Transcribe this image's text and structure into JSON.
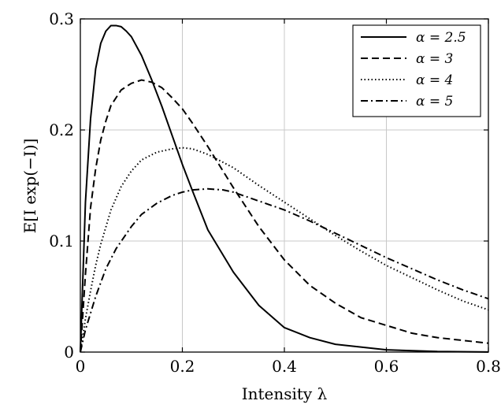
{
  "chart_data": {
    "type": "line",
    "title": "",
    "xlabel": "Intensity λ",
    "ylabel": "E[I exp(−I)]",
    "xlim": [
      0,
      0.8
    ],
    "ylim": [
      0,
      0.3
    ],
    "grid": true,
    "legend_position": "top-right",
    "x_ticks": [
      0,
      0.2,
      0.4,
      0.6,
      0.8
    ],
    "x_tick_labels": [
      "0",
      "0.2",
      "0.4",
      "0.6",
      "0.8"
    ],
    "y_ticks": [
      0,
      0.1,
      0.2,
      0.3
    ],
    "y_tick_labels": [
      "0",
      "0.1",
      "0.2",
      "0.3"
    ],
    "series": [
      {
        "name": "α = 2.5",
        "dash": "solid",
        "points": [
          [
            0,
            0
          ],
          [
            0.01,
            0.135
          ],
          [
            0.02,
            0.21
          ],
          [
            0.03,
            0.255
          ],
          [
            0.04,
            0.278
          ],
          [
            0.05,
            0.289
          ],
          [
            0.06,
            0.294
          ],
          [
            0.07,
            0.294
          ],
          [
            0.08,
            0.293
          ],
          [
            0.09,
            0.289
          ],
          [
            0.1,
            0.284
          ],
          [
            0.12,
            0.267
          ],
          [
            0.14,
            0.245
          ],
          [
            0.16,
            0.221
          ],
          [
            0.18,
            0.195
          ],
          [
            0.2,
            0.169
          ],
          [
            0.22,
            0.145
          ],
          [
            0.25,
            0.11
          ],
          [
            0.3,
            0.072
          ],
          [
            0.35,
            0.042
          ],
          [
            0.4,
            0.022
          ],
          [
            0.45,
            0.013
          ],
          [
            0.5,
            0.007
          ],
          [
            0.6,
            0.002
          ],
          [
            0.7,
            0.0005
          ],
          [
            0.8,
            0.0001
          ]
        ]
      },
      {
        "name": "α = 3",
        "dash": "dashed",
        "points": [
          [
            0,
            0
          ],
          [
            0.01,
            0.07
          ],
          [
            0.02,
            0.13
          ],
          [
            0.03,
            0.165
          ],
          [
            0.04,
            0.191
          ],
          [
            0.05,
            0.208
          ],
          [
            0.06,
            0.222
          ],
          [
            0.08,
            0.236
          ],
          [
            0.1,
            0.242
          ],
          [
            0.12,
            0.245
          ],
          [
            0.14,
            0.243
          ],
          [
            0.16,
            0.238
          ],
          [
            0.18,
            0.229
          ],
          [
            0.2,
            0.219
          ],
          [
            0.22,
            0.206
          ],
          [
            0.25,
            0.185
          ],
          [
            0.3,
            0.148
          ],
          [
            0.35,
            0.113
          ],
          [
            0.4,
            0.083
          ],
          [
            0.45,
            0.06
          ],
          [
            0.5,
            0.044
          ],
          [
            0.55,
            0.031
          ],
          [
            0.6,
            0.024
          ],
          [
            0.65,
            0.017
          ],
          [
            0.7,
            0.013
          ],
          [
            0.8,
            0.008
          ]
        ]
      },
      {
        "name": "α = 4",
        "dash": "dotted",
        "points": [
          [
            0,
            0
          ],
          [
            0.01,
            0.03
          ],
          [
            0.02,
            0.055
          ],
          [
            0.03,
            0.078
          ],
          [
            0.04,
            0.097
          ],
          [
            0.06,
            0.128
          ],
          [
            0.08,
            0.149
          ],
          [
            0.1,
            0.163
          ],
          [
            0.12,
            0.173
          ],
          [
            0.15,
            0.18
          ],
          [
            0.18,
            0.183
          ],
          [
            0.2,
            0.184
          ],
          [
            0.22,
            0.183
          ],
          [
            0.25,
            0.178
          ],
          [
            0.3,
            0.166
          ],
          [
            0.35,
            0.15
          ],
          [
            0.4,
            0.135
          ],
          [
            0.45,
            0.12
          ],
          [
            0.5,
            0.105
          ],
          [
            0.55,
            0.091
          ],
          [
            0.6,
            0.078
          ],
          [
            0.65,
            0.067
          ],
          [
            0.7,
            0.056
          ],
          [
            0.75,
            0.046
          ],
          [
            0.8,
            0.038
          ]
        ]
      },
      {
        "name": "α = 5",
        "dash": "dashdot",
        "points": [
          [
            0,
            0
          ],
          [
            0.01,
            0.02
          ],
          [
            0.02,
            0.035
          ],
          [
            0.03,
            0.05
          ],
          [
            0.05,
            0.075
          ],
          [
            0.07,
            0.093
          ],
          [
            0.1,
            0.113
          ],
          [
            0.12,
            0.124
          ],
          [
            0.15,
            0.134
          ],
          [
            0.18,
            0.141
          ],
          [
            0.2,
            0.144
          ],
          [
            0.22,
            0.146
          ],
          [
            0.25,
            0.147
          ],
          [
            0.28,
            0.146
          ],
          [
            0.3,
            0.144
          ],
          [
            0.35,
            0.136
          ],
          [
            0.4,
            0.128
          ],
          [
            0.45,
            0.118
          ],
          [
            0.5,
            0.107
          ],
          [
            0.55,
            0.096
          ],
          [
            0.6,
            0.085
          ],
          [
            0.65,
            0.075
          ],
          [
            0.7,
            0.065
          ],
          [
            0.75,
            0.056
          ],
          [
            0.8,
            0.048
          ]
        ]
      }
    ]
  }
}
